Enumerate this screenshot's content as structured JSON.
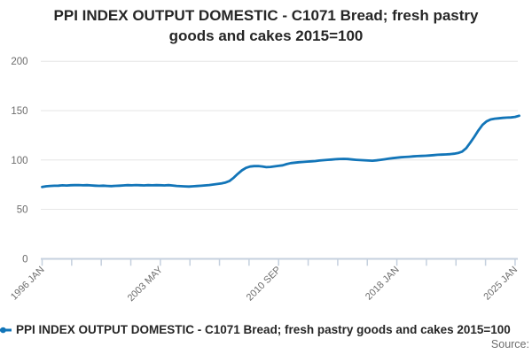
{
  "title": "PPI INDEX OUTPUT DOMESTIC - C1071 Bread; fresh pastry goods and cakes 2015=100",
  "legend": {
    "label": "PPI INDEX OUTPUT DOMESTIC - C1071 Bread; fresh pastry goods and cakes 2015=100",
    "marker": "blue-line-with-dot"
  },
  "source_label": "Source:",
  "colors": {
    "series": "#1275b8",
    "grid": "#e6e6e6",
    "axis": "#c5d0de",
    "muted_text": "#6d6d6d",
    "title_text": "#262626"
  },
  "chart_data": {
    "type": "line",
    "title": "PPI INDEX OUTPUT DOMESTIC - C1071 Bread; fresh pastry goods and cakes 2015=100",
    "xlabel": "",
    "ylabel": "",
    "grid": true,
    "legend_position": "bottom-left",
    "y_axis": {
      "ticks": [
        0,
        50,
        100,
        150,
        200
      ],
      "range": [
        0,
        200
      ]
    },
    "x_axis": {
      "tick_labels": [
        "1996 JAN",
        "2003 MAY",
        "2010 SEP",
        "2018 JAN",
        "2025 JAN"
      ],
      "labeled_tick_indices": [
        0,
        4,
        8,
        12,
        16
      ],
      "minor_tick_count": 17,
      "range_years": [
        1996.0,
        2025.25
      ]
    },
    "series": [
      {
        "name": "PPI INDEX OUTPUT DOMESTIC - C1071 Bread; fresh pastry goods and cakes 2015=100",
        "x_start": 1996.0,
        "x_step_years": 0.25,
        "values": [
          72.6,
          73.3,
          73.7,
          73.9,
          74.0,
          74.3,
          74.1,
          74.4,
          74.5,
          74.6,
          74.3,
          74.5,
          74.2,
          74.0,
          73.8,
          74.0,
          73.7,
          73.5,
          73.8,
          74.0,
          74.2,
          74.5,
          74.3,
          74.6,
          74.4,
          74.2,
          74.5,
          74.3,
          74.5,
          74.4,
          74.2,
          74.5,
          74.1,
          73.7,
          73.4,
          73.2,
          73.1,
          73.3,
          73.6,
          73.9,
          74.2,
          74.6,
          75.1,
          75.7,
          76.3,
          77.2,
          78.8,
          82.0,
          86.0,
          89.5,
          92.0,
          93.3,
          93.8,
          93.9,
          93.4,
          92.7,
          93.0,
          93.5,
          94.0,
          94.6,
          95.8,
          96.8,
          97.3,
          97.7,
          98.0,
          98.3,
          98.6,
          98.9,
          99.4,
          99.8,
          100.1,
          100.4,
          100.8,
          101.0,
          101.1,
          100.9,
          100.5,
          100.1,
          99.9,
          99.7,
          99.4,
          99.2,
          99.6,
          100.1,
          100.7,
          101.3,
          101.8,
          102.3,
          102.7,
          103.0,
          103.3,
          103.6,
          103.9,
          104.1,
          104.3,
          104.5,
          104.9,
          105.2,
          105.4,
          105.6,
          105.9,
          106.3,
          107.0,
          108.5,
          112.0,
          117.5,
          123.5,
          130.0,
          135.5,
          139.0,
          141.0,
          141.8,
          142.2,
          142.6,
          142.9,
          143.1,
          143.6,
          144.8
        ]
      }
    ]
  }
}
